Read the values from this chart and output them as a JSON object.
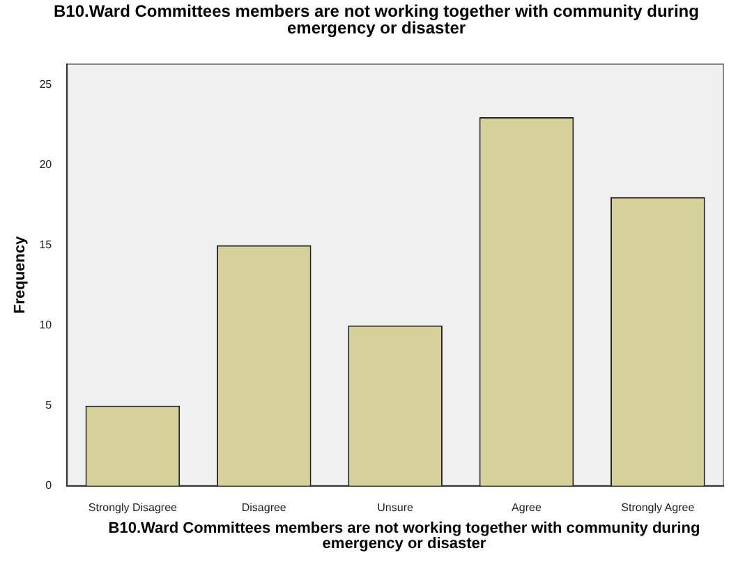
{
  "chart_data": {
    "type": "bar",
    "title": "B10.Ward Committees members are not working together with community during emergency or disaster",
    "xlabel": "B10.Ward Committees members are not working together with community during emergency or disaster",
    "ylabel": "Frequency",
    "categories": [
      "Strongly Disagree",
      "Disagree",
      "Unsure",
      "Agree",
      "Strongly Agree"
    ],
    "values": [
      5,
      15,
      10,
      23,
      18
    ],
    "color": "#d6d09a",
    "ylim": [
      0,
      26.3
    ],
    "yticks": [
      0,
      5,
      10,
      15,
      20,
      25
    ],
    "grid": false,
    "legend": false
  }
}
